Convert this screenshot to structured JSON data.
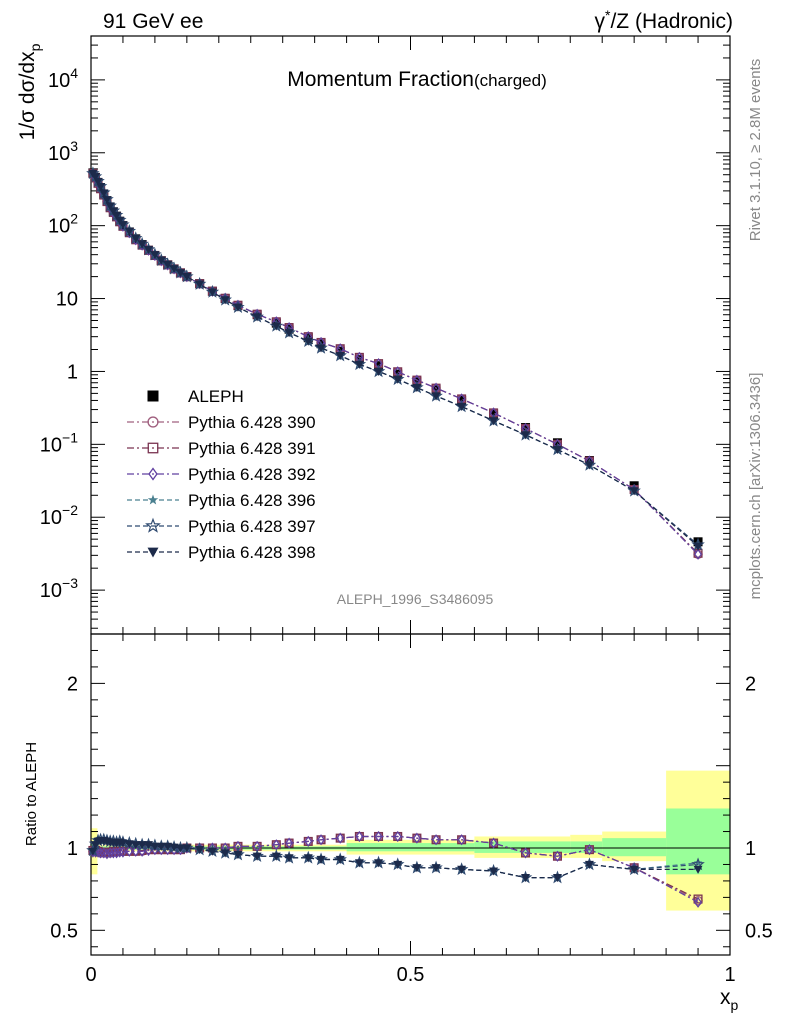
{
  "header": {
    "left": "91 GeV ee",
    "right_base": "γ",
    "right_sup": "*",
    "right_rest": "/Z (Hadronic)"
  },
  "side_text": {
    "top": "Rivet 3.1.10, ≥ 2.8M events",
    "bottom": "mcplots.cern.ch [arXiv:1306.3436]"
  },
  "main_title": {
    "main": "Momentum Fraction",
    "sub": "(charged)"
  },
  "analysis_tag": "ALEPH_1996_S3486095",
  "chart_data": [
    {
      "type": "line",
      "panel": "main",
      "yscale": "log",
      "ylabel_parts": [
        "1/σ dσ/dx",
        "p"
      ],
      "xlim": [
        0,
        1
      ],
      "ylim": [
        0.00025,
        40000
      ],
      "yticks": [
        {
          "v": 0.001,
          "base": "10",
          "exp": "−3"
        },
        {
          "v": 0.01,
          "base": "10",
          "exp": "−2"
        },
        {
          "v": 0.1,
          "base": "10",
          "exp": "−1"
        },
        {
          "v": 1,
          "base": "1",
          "exp": ""
        },
        {
          "v": 10,
          "base": "10",
          "exp": ""
        },
        {
          "v": 100,
          "base": "10",
          "exp": "2"
        },
        {
          "v": 1000,
          "base": "10",
          "exp": "3"
        },
        {
          "v": 10000,
          "base": "10",
          "exp": "4"
        }
      ],
      "x": [
        0.003,
        0.007,
        0.011,
        0.015,
        0.02,
        0.025,
        0.03,
        0.035,
        0.04,
        0.045,
        0.05,
        0.06,
        0.07,
        0.08,
        0.09,
        0.1,
        0.11,
        0.12,
        0.13,
        0.14,
        0.15,
        0.17,
        0.19,
        0.21,
        0.23,
        0.26,
        0.29,
        0.31,
        0.34,
        0.36,
        0.39,
        0.42,
        0.45,
        0.48,
        0.51,
        0.54,
        0.58,
        0.63,
        0.68,
        0.73,
        0.78,
        0.85,
        0.95
      ],
      "series": [
        {
          "name": "ALEPH",
          "marker": "square-filled",
          "color": "#000000",
          "values": [
            530,
            460,
            390,
            330,
            270,
            220,
            180,
            155,
            135,
            115,
            100,
            82,
            66,
            55,
            46,
            39,
            33,
            29,
            25.5,
            22.5,
            20,
            16,
            12.6,
            10,
            8.0,
            6.0,
            4.6,
            3.8,
            2.9,
            2.4,
            1.9,
            1.45,
            1.2,
            0.92,
            0.72,
            0.56,
            0.4,
            0.26,
            0.17,
            0.105,
            0.06,
            0.027,
            0.0046
          ]
        },
        {
          "name": "Pythia 6.428 390",
          "marker": "circle-open",
          "color": "#a0607f",
          "dash": "7,3,2,3",
          "values": [
            520,
            450,
            380,
            320,
            262,
            213,
            175,
            151,
            132,
            113,
            98,
            80,
            64,
            54,
            46,
            39,
            33,
            29,
            25.5,
            22.5,
            20,
            16,
            12.6,
            10.1,
            8.1,
            6.1,
            4.8,
            4.0,
            3.0,
            2.5,
            2.05,
            1.56,
            1.28,
            0.99,
            0.76,
            0.59,
            0.42,
            0.27,
            0.165,
            0.1,
            0.059,
            0.024,
            0.0031
          ]
        },
        {
          "name": "Pythia 6.428 391",
          "marker": "square-open",
          "color": "#7a3350",
          "dash": "7,3,2,3",
          "values": [
            522,
            452,
            381,
            321,
            263,
            214,
            176,
            152,
            132,
            113,
            98,
            80,
            64,
            54,
            46,
            39,
            33,
            29,
            25.5,
            22.5,
            20,
            16,
            12.6,
            10.1,
            8.1,
            6.1,
            4.8,
            4.0,
            3.0,
            2.5,
            2.05,
            1.56,
            1.28,
            0.99,
            0.76,
            0.59,
            0.42,
            0.27,
            0.165,
            0.1,
            0.059,
            0.024,
            0.0032
          ]
        },
        {
          "name": "Pythia 6.428 392",
          "marker": "diamond-open",
          "color": "#6040a0",
          "dash": "7,3,2,3",
          "values": [
            518,
            448,
            379,
            319,
            261,
            212,
            175,
            151,
            131,
            113,
            98,
            80,
            64,
            54,
            46,
            39,
            33,
            29,
            25.5,
            22.5,
            20,
            16,
            12.6,
            10.1,
            8.1,
            6.1,
            4.8,
            4.0,
            3.0,
            2.5,
            2.05,
            1.56,
            1.28,
            0.99,
            0.76,
            0.59,
            0.42,
            0.27,
            0.165,
            0.1,
            0.059,
            0.024,
            0.0031
          ]
        },
        {
          "name": "Pythia 6.428 396",
          "marker": "star-filled",
          "color": "#4a8090",
          "dash": "5,3",
          "values": [
            520,
            470,
            405,
            345,
            282,
            228,
            186,
            160,
            139,
            119,
            103,
            84,
            67,
            56,
            47,
            40,
            33.5,
            29.3,
            25.7,
            22.6,
            20,
            15.8,
            12.3,
            9.6,
            7.6,
            5.6,
            4.2,
            3.4,
            2.6,
            2.1,
            1.65,
            1.25,
            1.0,
            0.78,
            0.6,
            0.46,
            0.33,
            0.21,
            0.135,
            0.085,
            0.052,
            0.023,
            0.0041
          ]
        },
        {
          "name": "Pythia 6.428 397",
          "marker": "star-open",
          "color": "#2f4a70",
          "dash": "5,3",
          "values": [
            521,
            471,
            406,
            346,
            283,
            229,
            187,
            160,
            139,
            119,
            103,
            84,
            67,
            56,
            47,
            40,
            33.5,
            29.3,
            25.7,
            22.6,
            20,
            15.8,
            12.3,
            9.6,
            7.6,
            5.6,
            4.2,
            3.4,
            2.6,
            2.1,
            1.65,
            1.25,
            1.0,
            0.78,
            0.6,
            0.46,
            0.33,
            0.21,
            0.135,
            0.085,
            0.052,
            0.023,
            0.0042
          ]
        },
        {
          "name": "Pythia 6.428 398",
          "marker": "triangle-down-filled",
          "color": "#1c2a4a",
          "dash": "5,3",
          "values": [
            519,
            469,
            404,
            344,
            281,
            227,
            186,
            159,
            138,
            118,
            103,
            84,
            67,
            56,
            47,
            40,
            33.5,
            29.3,
            25.7,
            22.6,
            20,
            15.8,
            12.3,
            9.6,
            7.6,
            5.6,
            4.2,
            3.4,
            2.6,
            2.1,
            1.65,
            1.25,
            1.0,
            0.78,
            0.6,
            0.46,
            0.33,
            0.21,
            0.135,
            0.085,
            0.052,
            0.023,
            0.004
          ]
        }
      ]
    },
    {
      "type": "line",
      "panel": "ratio",
      "ylabel": "Ratio to ALEPH",
      "xlabel_parts": [
        "x",
        "p"
      ],
      "xlim": [
        0,
        1
      ],
      "ylim": [
        0.35,
        2.3
      ],
      "xticks": [
        {
          "v": 0,
          "label": "0"
        },
        {
          "v": 0.5,
          "label": "0.5"
        },
        {
          "v": 1,
          "label": "1"
        }
      ],
      "yticks": [
        {
          "v": 0.5,
          "label": "0.5"
        },
        {
          "v": 1,
          "label": "1"
        },
        {
          "v": 2,
          "label": "2"
        }
      ],
      "x": [
        0.003,
        0.007,
        0.011,
        0.015,
        0.02,
        0.025,
        0.03,
        0.035,
        0.04,
        0.045,
        0.05,
        0.06,
        0.07,
        0.08,
        0.09,
        0.1,
        0.11,
        0.12,
        0.13,
        0.14,
        0.15,
        0.17,
        0.19,
        0.21,
        0.23,
        0.26,
        0.29,
        0.31,
        0.34,
        0.36,
        0.39,
        0.42,
        0.45,
        0.48,
        0.51,
        0.54,
        0.58,
        0.63,
        0.68,
        0.73,
        0.78,
        0.85,
        0.95
      ],
      "bands": [
        {
          "x0": 0.0,
          "x1": 0.01,
          "green": [
            0.97,
            1.03
          ],
          "yellow": [
            0.84,
            1.12
          ]
        },
        {
          "x0": 0.01,
          "x1": 0.4,
          "green": [
            0.99,
            1.01
          ],
          "yellow": [
            0.98,
            1.02
          ]
        },
        {
          "x0": 0.4,
          "x1": 0.6,
          "green": [
            0.98,
            1.03
          ],
          "yellow": [
            0.96,
            1.05
          ]
        },
        {
          "x0": 0.6,
          "x1": 0.75,
          "green": [
            0.97,
            1.04
          ],
          "yellow": [
            0.94,
            1.07
          ]
        },
        {
          "x0": 0.75,
          "x1": 0.8,
          "green": [
            0.97,
            1.04
          ],
          "yellow": [
            0.94,
            1.08
          ]
        },
        {
          "x0": 0.8,
          "x1": 0.9,
          "green": [
            0.95,
            1.06
          ],
          "yellow": [
            0.92,
            1.1
          ]
        },
        {
          "x0": 0.9,
          "x1": 1.0,
          "green": [
            0.84,
            1.24
          ],
          "yellow": [
            0.62,
            1.47
          ]
        }
      ],
      "series": [
        {
          "name": "Pythia 6.428 390",
          "marker": "circle-open",
          "color": "#a0607f",
          "dash": "7,3,2,3",
          "values": [
            0.98,
            0.98,
            0.98,
            0.97,
            0.97,
            0.97,
            0.97,
            0.975,
            0.975,
            0.98,
            0.98,
            0.98,
            0.98,
            0.98,
            0.99,
            0.99,
            0.99,
            0.99,
            0.99,
            0.99,
            1.0,
            1.0,
            1.0,
            1.0,
            1.01,
            1.01,
            1.02,
            1.03,
            1.04,
            1.05,
            1.06,
            1.07,
            1.07,
            1.07,
            1.06,
            1.05,
            1.05,
            1.03,
            0.97,
            0.95,
            0.99,
            0.88,
            0.68
          ]
        },
        {
          "name": "Pythia 6.428 391",
          "marker": "square-open",
          "color": "#7a3350",
          "dash": "7,3,2,3",
          "values": [
            0.985,
            0.985,
            0.98,
            0.975,
            0.975,
            0.975,
            0.975,
            0.98,
            0.98,
            0.98,
            0.98,
            0.98,
            0.98,
            0.985,
            0.99,
            0.99,
            0.99,
            0.99,
            0.99,
            0.99,
            1.0,
            1.0,
            1.0,
            1.0,
            1.01,
            1.01,
            1.02,
            1.03,
            1.04,
            1.05,
            1.06,
            1.07,
            1.07,
            1.07,
            1.06,
            1.05,
            1.05,
            1.03,
            0.97,
            0.95,
            0.99,
            0.88,
            0.69
          ]
        },
        {
          "name": "Pythia 6.428 392",
          "marker": "diamond-open",
          "color": "#6040a0",
          "dash": "7,3,2,3",
          "values": [
            0.975,
            0.975,
            0.975,
            0.97,
            0.97,
            0.965,
            0.97,
            0.97,
            0.97,
            0.975,
            0.975,
            0.98,
            0.98,
            0.98,
            0.985,
            0.99,
            0.99,
            0.99,
            0.99,
            0.99,
            1.0,
            1.0,
            1.0,
            1.0,
            1.01,
            1.01,
            1.02,
            1.03,
            1.04,
            1.05,
            1.06,
            1.07,
            1.07,
            1.07,
            1.06,
            1.05,
            1.05,
            1.03,
            0.97,
            0.95,
            0.99,
            0.88,
            0.67
          ]
        },
        {
          "name": "Pythia 6.428 396",
          "marker": "star-filled",
          "color": "#4a8090",
          "dash": "5,3",
          "values": [
            0.98,
            1.02,
            1.04,
            1.045,
            1.045,
            1.04,
            1.035,
            1.035,
            1.03,
            1.035,
            1.03,
            1.025,
            1.02,
            1.02,
            1.02,
            1.01,
            1.01,
            1.01,
            1.005,
            1.0,
            1.0,
            0.99,
            0.98,
            0.97,
            0.96,
            0.95,
            0.95,
            0.94,
            0.94,
            0.93,
            0.93,
            0.91,
            0.91,
            0.9,
            0.88,
            0.88,
            0.87,
            0.86,
            0.82,
            0.82,
            0.9,
            0.87,
            0.91
          ]
        },
        {
          "name": "Pythia 6.428 397",
          "marker": "star-open",
          "color": "#2f4a70",
          "dash": "5,3",
          "values": [
            0.985,
            1.025,
            1.045,
            1.05,
            1.05,
            1.045,
            1.04,
            1.04,
            1.035,
            1.04,
            1.035,
            1.03,
            1.025,
            1.02,
            1.02,
            1.015,
            1.01,
            1.01,
            1.005,
            1.0,
            1.0,
            0.99,
            0.98,
            0.97,
            0.96,
            0.95,
            0.95,
            0.94,
            0.94,
            0.93,
            0.93,
            0.91,
            0.91,
            0.9,
            0.88,
            0.88,
            0.87,
            0.86,
            0.82,
            0.82,
            0.9,
            0.87,
            0.9
          ]
        },
        {
          "name": "Pythia 6.428 398",
          "marker": "triangle-down-filled",
          "color": "#1c2a4a",
          "dash": "5,3",
          "values": [
            0.98,
            1.02,
            1.04,
            1.045,
            1.045,
            1.04,
            1.035,
            1.035,
            1.03,
            1.035,
            1.03,
            1.025,
            1.02,
            1.02,
            1.02,
            1.01,
            1.01,
            1.01,
            1.005,
            1.0,
            1.0,
            0.99,
            0.98,
            0.97,
            0.96,
            0.95,
            0.95,
            0.94,
            0.94,
            0.93,
            0.93,
            0.91,
            0.91,
            0.9,
            0.88,
            0.88,
            0.87,
            0.86,
            0.82,
            0.82,
            0.9,
            0.87,
            0.87
          ]
        }
      ]
    }
  ],
  "colors": {
    "band_green": "#99ff99",
    "band_yellow": "#ffff99",
    "grey_text": "#888888"
  }
}
